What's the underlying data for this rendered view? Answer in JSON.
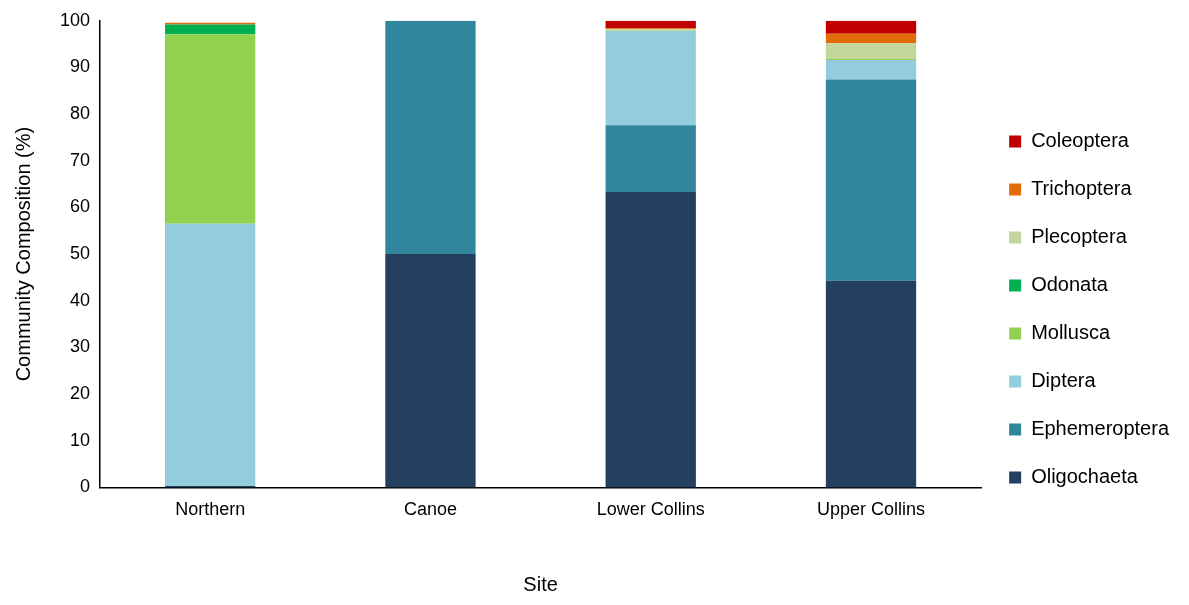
{
  "chart_data": {
    "type": "bar",
    "stacked": true,
    "xlabel": "Site",
    "ylabel": "Community Composition (%)",
    "categories": [
      "Northern",
      "Canoe",
      "Lower Collins",
      "Upper Collins"
    ],
    "ylim": [
      0,
      100
    ],
    "yticks": [
      0,
      10,
      20,
      30,
      40,
      50,
      60,
      70,
      80,
      90,
      100
    ],
    "grid": false,
    "legend": "right",
    "series": [
      {
        "name": "Oligochaeta",
        "color": "#243f60",
        "values": [
          0.3,
          50,
          63.3,
          44.3
        ]
      },
      {
        "name": "Ephemeroptera",
        "color": "#31859c",
        "values": [
          0,
          50,
          14.3,
          43.1
        ]
      },
      {
        "name": "Diptera",
        "color": "#93cddd",
        "values": [
          56.2,
          0,
          20.2,
          4.2
        ]
      },
      {
        "name": "Mollusca",
        "color": "#92d050",
        "values": [
          40.6,
          0,
          0,
          0.2
        ]
      },
      {
        "name": "Odonata",
        "color": "#00b050",
        "values": [
          2.1,
          0,
          0,
          0
        ]
      },
      {
        "name": "Plecoptera",
        "color": "#c3d69b",
        "values": [
          0,
          0,
          0.4,
          3.4
        ]
      },
      {
        "name": "Trichoptera",
        "color": "#e36c09",
        "values": [
          0.4,
          0,
          0.2,
          2.0
        ]
      },
      {
        "name": "Coleoptera",
        "color": "#c00000",
        "values": [
          0,
          0,
          1.6,
          2.8
        ]
      }
    ]
  }
}
